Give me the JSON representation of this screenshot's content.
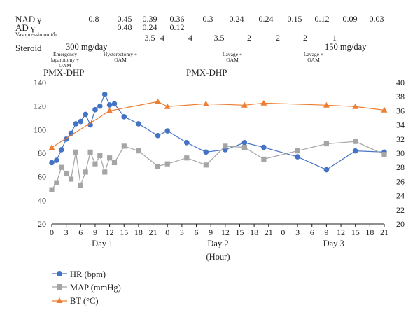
{
  "table": {
    "rows": [
      {
        "key": "nad",
        "label": "NAD γ",
        "values": [
          "0.8",
          "0.45",
          "0.39",
          "0.36",
          "0.3",
          "0.24",
          "0.24",
          "0.15",
          "0.12",
          "0.09",
          "0.03"
        ]
      },
      {
        "key": "ad",
        "label": "AD γ",
        "values": [
          "0.48",
          "0.24",
          "0.12"
        ]
      },
      {
        "key": "vaso",
        "label": "Vasopressin unit/h",
        "values": [
          "3.5",
          "4",
          "4",
          "3.5",
          "2",
          "2",
          "2",
          "1"
        ]
      },
      {
        "key": "steroid",
        "label": "Steroid",
        "values": [
          "300 mg/day",
          "150 mg/day"
        ]
      }
    ]
  },
  "events": [
    "Emergency laparotomy + OAM",
    "Hysterectomy + OAM",
    "Lavage + OAM",
    "Lavage + OAM"
  ],
  "pmx": [
    "PMX-DHP",
    "PMX-DHP"
  ],
  "chart_data": {
    "type": "line",
    "x_tick_labels": [
      "0",
      "3",
      "6",
      "9",
      "12",
      "15",
      "18",
      "21",
      "0",
      "3",
      "6",
      "9",
      "12",
      "15",
      "18",
      "21",
      "0",
      "3",
      "6",
      "9",
      "12",
      "15",
      "18",
      "21"
    ],
    "day_labels": [
      "Day 1",
      "Day 2",
      "Day 3"
    ],
    "xlabel": "(Hour)",
    "xlim": [
      0,
      69
    ],
    "y_left": {
      "lim": [
        20,
        140
      ],
      "ticks": [
        20,
        40,
        60,
        80,
        100,
        120,
        140
      ]
    },
    "y_right": {
      "lim": [
        20,
        40
      ],
      "ticks": [
        20,
        22,
        24,
        26,
        28,
        30,
        32,
        34,
        36,
        38,
        40
      ]
    },
    "series": [
      {
        "name": "HR (bpm)",
        "color": "#4472c4",
        "marker": "circle",
        "axis": "left",
        "x": [
          0,
          1,
          2,
          3,
          4,
          5,
          6,
          7,
          8,
          9,
          10,
          11,
          12,
          13,
          15,
          18,
          22,
          24,
          28,
          32,
          36,
          40,
          44,
          51,
          57,
          63,
          69
        ],
        "y": [
          72,
          74,
          83,
          92,
          97,
          105,
          107,
          113,
          104,
          117,
          120,
          130,
          121,
          122,
          111,
          105,
          95,
          99,
          89,
          81,
          83,
          89,
          85,
          77,
          66,
          82,
          81
        ]
      },
      {
        "name": "MAP (mmHg)",
        "color": "#a5a5a5",
        "marker": "square",
        "axis": "left",
        "x": [
          0,
          1,
          2,
          3,
          4,
          5,
          6,
          7,
          8,
          9,
          10,
          11,
          12,
          13,
          15,
          18,
          22,
          24,
          28,
          32,
          36,
          40,
          44,
          51,
          57,
          63,
          69
        ],
        "y": [
          49,
          55,
          68,
          63,
          58,
          81,
          53,
          64,
          81,
          71,
          78,
          64,
          76,
          72,
          86,
          82,
          69,
          71,
          76,
          70,
          86,
          85,
          75,
          82,
          88,
          90,
          79
        ]
      },
      {
        "name": "BT (°C)",
        "color": "#ed7d31",
        "marker": "triangle",
        "axis": "right",
        "x": [
          0,
          12,
          22,
          24,
          32,
          40,
          44,
          57,
          63,
          69
        ],
        "y": [
          30.8,
          36.0,
          37.3,
          36.6,
          37.0,
          36.8,
          37.1,
          36.8,
          36.6,
          36.1
        ]
      }
    ]
  }
}
